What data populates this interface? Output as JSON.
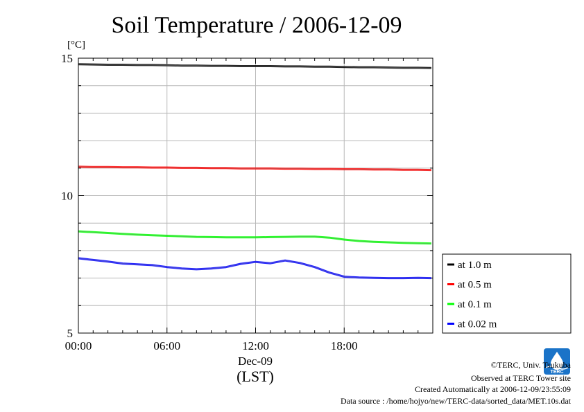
{
  "chart_data": {
    "type": "line",
    "title": "Soil Temperature / 2006-12-09",
    "ylabel": "[°C]",
    "ylim": [
      5,
      15
    ],
    "yticks": [
      5,
      10,
      15
    ],
    "xlim": [
      0,
      24
    ],
    "xticks": [
      {
        "label": "00:00",
        "hour": 0
      },
      {
        "label": "06:00",
        "hour": 6
      },
      {
        "label": "12:00",
        "hour": 12
      },
      {
        "label": "18:00",
        "hour": 18
      }
    ],
    "xdate_label": "Dec-09",
    "xunit_label": "(LST)",
    "grid": true,
    "legend_position": "right",
    "x": [
      0,
      1,
      2,
      3,
      4,
      5,
      6,
      7,
      8,
      9,
      10,
      11,
      12,
      13,
      14,
      15,
      16,
      17,
      18,
      19,
      20,
      21,
      22,
      23,
      23.9
    ],
    "series": [
      {
        "name": "at 1.0 m",
        "color": "#000000",
        "values": [
          14.78,
          14.77,
          14.76,
          14.76,
          14.75,
          14.75,
          14.74,
          14.73,
          14.73,
          14.72,
          14.72,
          14.71,
          14.71,
          14.71,
          14.7,
          14.7,
          14.69,
          14.69,
          14.68,
          14.67,
          14.67,
          14.66,
          14.65,
          14.65,
          14.64
        ]
      },
      {
        "name": "at 0.5 m",
        "color": "#ff0000",
        "values": [
          11.05,
          11.04,
          11.04,
          11.03,
          11.03,
          11.02,
          11.02,
          11.01,
          11.01,
          11.0,
          11.0,
          10.99,
          10.99,
          10.99,
          10.98,
          10.98,
          10.97,
          10.97,
          10.96,
          10.96,
          10.95,
          10.95,
          10.94,
          10.94,
          10.93
        ]
      },
      {
        "name": "at 0.1 m",
        "color": "#00ff00",
        "values": [
          8.7,
          8.67,
          8.64,
          8.61,
          8.58,
          8.56,
          8.54,
          8.52,
          8.5,
          8.49,
          8.48,
          8.48,
          8.48,
          8.49,
          8.5,
          8.51,
          8.51,
          8.47,
          8.4,
          8.35,
          8.32,
          8.3,
          8.28,
          8.27,
          8.26
        ]
      },
      {
        "name": "at 0.02 m",
        "color": "#0000ff",
        "values": [
          7.72,
          7.66,
          7.6,
          7.53,
          7.5,
          7.47,
          7.4,
          7.35,
          7.32,
          7.35,
          7.4,
          7.52,
          7.59,
          7.54,
          7.64,
          7.55,
          7.4,
          7.2,
          7.05,
          7.02,
          7.01,
          7.0,
          7.0,
          7.01,
          7.0
        ]
      }
    ]
  },
  "footer": {
    "copyright": "©TERC, Univ. Tsukuba",
    "site": "Observed at TERC Tower site",
    "created": "Created Automatically at 2006-12-09/23:55:09",
    "source": "Data source : /home/hojyo/new/TERC-data/sorted_data/MET.10s.dat"
  },
  "logo": {
    "text": "TERC",
    "color": "#1a73c8"
  }
}
